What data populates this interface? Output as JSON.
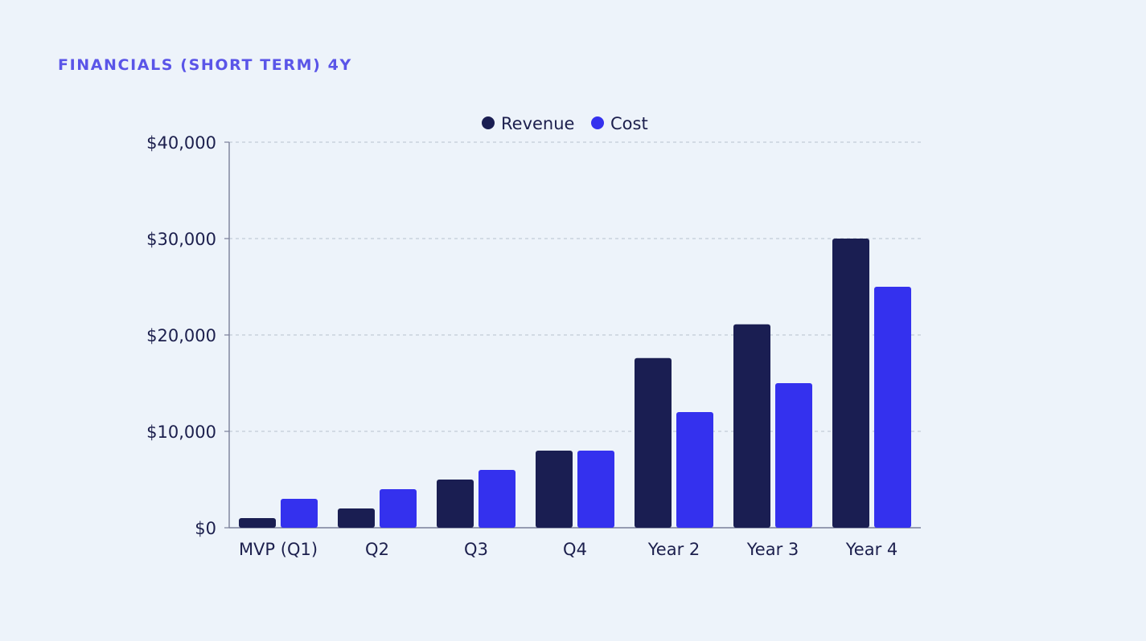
{
  "page": {
    "title": "FINANCIALS (SHORT TERM) 4Y"
  },
  "colors": {
    "background": "#edf3fa",
    "title": "#5a55e8",
    "revenue": "#1a1e52",
    "cost": "#3431ee",
    "grid": "#c3cad6",
    "axis": "#7a7f9a",
    "text": "#1c1f4d"
  },
  "chart_data": {
    "type": "bar",
    "title": "",
    "xlabel": "",
    "ylabel": "",
    "categories": [
      "MVP (Q1)",
      "Q2",
      "Q3",
      "Q4",
      "Year 2",
      "Year 3",
      "Year 4"
    ],
    "series": [
      {
        "name": "Revenue",
        "color": "#1a1e52",
        "values": [
          1000,
          2000,
          5000,
          8000,
          17600,
          21100,
          30000
        ]
      },
      {
        "name": "Cost",
        "color": "#3431ee",
        "values": [
          3000,
          4000,
          6000,
          8000,
          12000,
          15000,
          25000
        ]
      }
    ],
    "ylim": [
      0,
      40000
    ],
    "yticks": [
      0,
      10000,
      20000,
      30000,
      40000
    ],
    "ytick_labels": [
      "$0",
      "$10,000",
      "$20,000",
      "$30,000",
      "$40,000"
    ],
    "grid": true,
    "legend_position": "top-center"
  }
}
